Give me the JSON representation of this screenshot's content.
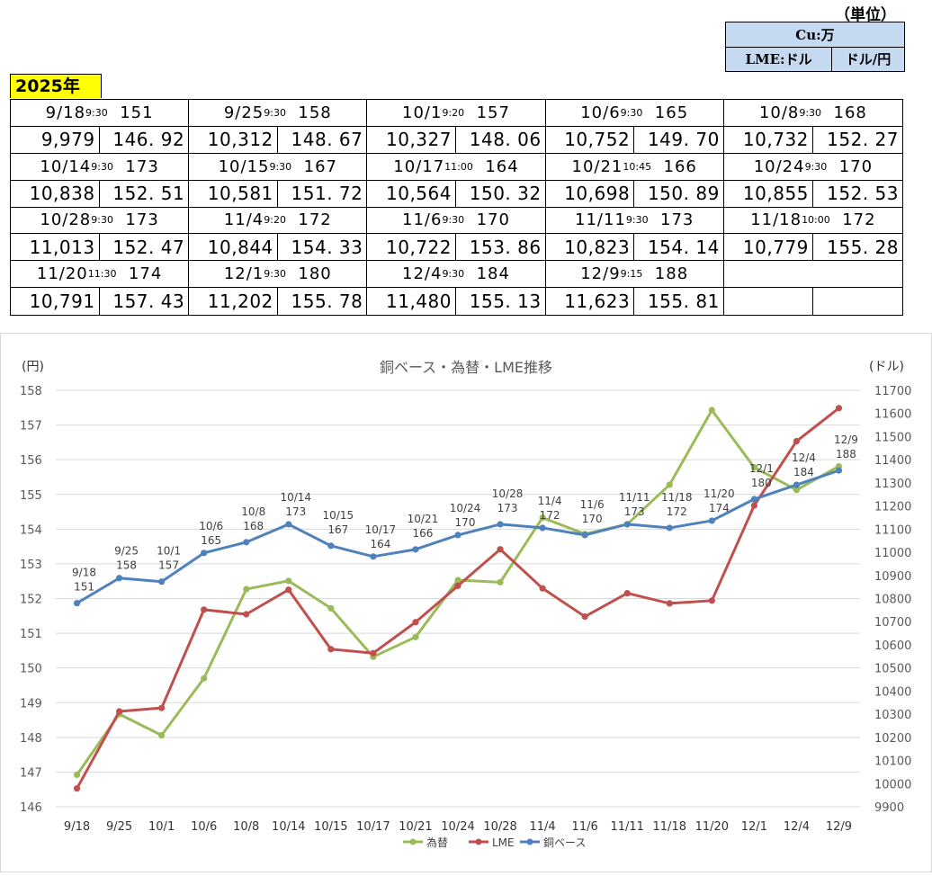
{
  "header": {
    "unit_label": "（単位）",
    "cu_label": "Cu:万",
    "lme_unit": "LME:ドル",
    "fx_unit": "ドル/円",
    "year_label": "2025年"
  },
  "entries": [
    {
      "date": "9/18",
      "time": "9:30",
      "base": "151",
      "lme": "9,979",
      "fx": "146.92"
    },
    {
      "date": "9/25",
      "time": "9:30",
      "base": "158",
      "lme": "10,312",
      "fx": "148.67"
    },
    {
      "date": "10/1",
      "time": "9:20",
      "base": "157",
      "lme": "10,327",
      "fx": "148.06"
    },
    {
      "date": "10/6",
      "time": "9:30",
      "base": "165",
      "lme": "10,752",
      "fx": "149.70"
    },
    {
      "date": "10/8",
      "time": "9:30",
      "base": "168",
      "lme": "10,732",
      "fx": "152.27"
    },
    {
      "date": "10/14",
      "time": "9:30",
      "base": "173",
      "lme": "10,838",
      "fx": "152.51"
    },
    {
      "date": "10/15",
      "time": "9:30",
      "base": "167",
      "lme": "10,581",
      "fx": "151.72"
    },
    {
      "date": "10/17",
      "time": "11:00",
      "base": "164",
      "lme": "10,564",
      "fx": "150.32"
    },
    {
      "date": "10/21",
      "time": "10:45",
      "base": "166",
      "lme": "10,698",
      "fx": "150.89"
    },
    {
      "date": "10/24",
      "time": "9:30",
      "base": "170",
      "lme": "10,855",
      "fx": "152.53"
    },
    {
      "date": "10/28",
      "time": "9:30",
      "base": "173",
      "lme": "11,013",
      "fx": "152.47"
    },
    {
      "date": "11/4",
      "time": "9:20",
      "base": "172",
      "lme": "10,844",
      "fx": "154.33"
    },
    {
      "date": "11/6",
      "time": "9:30",
      "base": "170",
      "lme": "10,722",
      "fx": "153.86"
    },
    {
      "date": "11/11",
      "time": "9:30",
      "base": "173",
      "lme": "10,823",
      "fx": "154.14"
    },
    {
      "date": "11/18",
      "time": "10:00",
      "base": "172",
      "lme": "10,779",
      "fx": "155.28"
    },
    {
      "date": "11/20",
      "time": "11:30",
      "base": "174",
      "lme": "10,791",
      "fx": "157.43"
    },
    {
      "date": "12/1",
      "time": "9:30",
      "base": "180",
      "lme": "11,202",
      "fx": "155.78"
    },
    {
      "date": "12/4",
      "time": "9:30",
      "base": "184",
      "lme": "11,480",
      "fx": "155.13"
    },
    {
      "date": "12/9",
      "time": "9:15",
      "base": "188",
      "lme": "11,623",
      "fx": "155.81"
    }
  ],
  "chart_data": {
    "type": "line",
    "title": "銅ベース・為替・LME推移",
    "left_axis_label": "(円)",
    "right_axis_label": "(ドル)",
    "left_ylim": [
      146,
      158
    ],
    "left_ticks": [
      "146",
      "147",
      "148",
      "149",
      "150",
      "151",
      "152",
      "153",
      "154",
      "155",
      "156",
      "157",
      "158"
    ],
    "right_ylim": [
      9900,
      11700
    ],
    "right_ticks": [
      "9900",
      "10000",
      "10100",
      "10200",
      "10300",
      "10400",
      "10500",
      "10600",
      "10700",
      "10800",
      "10900",
      "11000",
      "11100",
      "11200",
      "11300",
      "11400",
      "11500",
      "11600",
      "11700"
    ],
    "categories": [
      "9/18",
      "9/25",
      "10/1",
      "10/6",
      "10/8",
      "10/14",
      "10/15",
      "10/17",
      "10/21",
      "10/24",
      "10/28",
      "11/4",
      "11/6",
      "11/11",
      "11/18",
      "11/20",
      "12/1",
      "12/4",
      "12/9"
    ],
    "legend_position": "bottom",
    "grid": true,
    "series": [
      {
        "name": "為替",
        "axis": "left",
        "color": "#9bbb59",
        "values": [
          146.92,
          148.67,
          148.06,
          149.7,
          152.27,
          152.51,
          151.72,
          150.32,
          150.89,
          152.53,
          152.47,
          154.33,
          153.86,
          154.14,
          155.28,
          157.43,
          155.78,
          155.13,
          155.81
        ]
      },
      {
        "name": "LME",
        "axis": "right",
        "color": "#c0504d",
        "values": [
          9979,
          10312,
          10327,
          10752,
          10732,
          10838,
          10581,
          10564,
          10698,
          10855,
          11013,
          10844,
          10722,
          10823,
          10779,
          10791,
          11202,
          11480,
          11623
        ]
      },
      {
        "name": "銅ベース",
        "axis": "right",
        "color": "#4f81bd",
        "scale_note_hidden": true,
        "values": [
          151,
          158,
          157,
          165,
          168,
          173,
          167,
          164,
          166,
          170,
          173,
          172,
          170,
          173,
          172,
          174,
          180,
          184,
          188
        ]
      }
    ]
  }
}
